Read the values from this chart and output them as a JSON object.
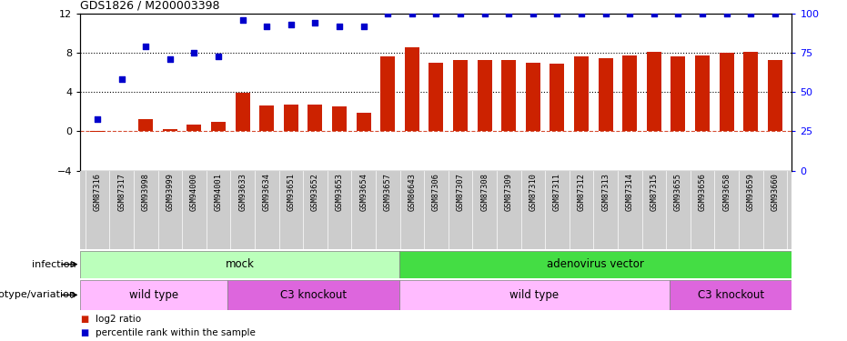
{
  "title": "GDS1826 / M200003398",
  "samples": [
    "GSM87316",
    "GSM87317",
    "GSM93998",
    "GSM93999",
    "GSM94000",
    "GSM94001",
    "GSM93633",
    "GSM93634",
    "GSM93651",
    "GSM93652",
    "GSM93653",
    "GSM93654",
    "GSM93657",
    "GSM86643",
    "GSM87306",
    "GSM87307",
    "GSM87308",
    "GSM87309",
    "GSM87310",
    "GSM87311",
    "GSM87312",
    "GSM87313",
    "GSM87314",
    "GSM87315",
    "GSM93655",
    "GSM93656",
    "GSM93658",
    "GSM93659",
    "GSM93660"
  ],
  "log2_ratio": [
    -0.05,
    0.0,
    1.2,
    0.2,
    0.7,
    1.0,
    3.9,
    2.6,
    2.7,
    2.7,
    2.5,
    1.9,
    7.6,
    8.6,
    7.0,
    7.3,
    7.3,
    7.3,
    7.0,
    6.9,
    7.6,
    7.5,
    7.7,
    8.1,
    7.6,
    7.7,
    8.0,
    8.1,
    7.3
  ],
  "percentile_rank": [
    33,
    58,
    79,
    71,
    75,
    73,
    96,
    92,
    93,
    94,
    92,
    92,
    100,
    100,
    100,
    100,
    100,
    100,
    100,
    100,
    100,
    100,
    100,
    100,
    100,
    100,
    100,
    100,
    100
  ],
  "bar_color": "#cc2200",
  "scatter_color": "#0000cc",
  "ylim_left": [
    -4,
    12
  ],
  "ylim_right": [
    0,
    100
  ],
  "yticks_left": [
    -4,
    0,
    4,
    8,
    12
  ],
  "yticks_right": [
    0,
    25,
    50,
    75,
    100
  ],
  "hlines": [
    0,
    4,
    8
  ],
  "infection_groups": [
    {
      "label": "mock",
      "start": 0,
      "end": 12,
      "color": "#bbffbb"
    },
    {
      "label": "adenovirus vector",
      "start": 13,
      "end": 28,
      "color": "#44dd44"
    }
  ],
  "genotype_groups": [
    {
      "label": "wild type",
      "start": 0,
      "end": 5,
      "color": "#ffbbff"
    },
    {
      "label": "C3 knockout",
      "start": 6,
      "end": 12,
      "color": "#dd66dd"
    },
    {
      "label": "wild type",
      "start": 13,
      "end": 23,
      "color": "#ffbbff"
    },
    {
      "label": "C3 knockout",
      "start": 24,
      "end": 28,
      "color": "#dd66dd"
    }
  ],
  "legend_bar_label": "log2 ratio",
  "legend_scatter_label": "percentile rank within the sample",
  "infection_label": "infection",
  "genotype_label": "genotype/variation",
  "xtick_bg": "#cccccc"
}
